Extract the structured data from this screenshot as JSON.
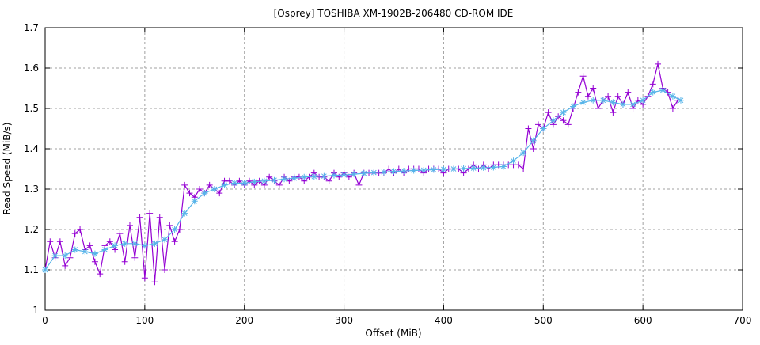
{
  "chart_data": {
    "type": "line",
    "title": "[Osprey] TOSHIBA XM-1902B-206480 CD-ROM IDE",
    "xlabel": "Offset (MiB)",
    "ylabel": "Read Speed (MiB/s)",
    "xlim": [
      0,
      700
    ],
    "ylim": [
      1,
      1.7
    ],
    "xticks": [
      "0",
      "100",
      "200",
      "300",
      "400",
      "500",
      "600",
      "700"
    ],
    "yticks": [
      "1",
      "1.1",
      "1.2",
      "1.3",
      "1.4",
      "1.5",
      "1.6",
      "1.7"
    ],
    "grid": true,
    "series": [
      {
        "color": "#9400d3",
        "marker": "plus",
        "x": [
          0,
          5,
          10,
          15,
          20,
          25,
          30,
          35,
          40,
          45,
          50,
          55,
          60,
          65,
          70,
          75,
          80,
          85,
          90,
          95,
          100,
          105,
          110,
          115,
          120,
          125,
          130,
          135,
          140,
          145,
          150,
          155,
          160,
          165,
          170,
          175,
          180,
          185,
          190,
          195,
          200,
          205,
          210,
          215,
          220,
          225,
          230,
          235,
          240,
          245,
          250,
          255,
          260,
          265,
          270,
          275,
          280,
          285,
          290,
          295,
          300,
          305,
          310,
          315,
          320,
          325,
          330,
          335,
          340,
          345,
          350,
          355,
          360,
          365,
          370,
          375,
          380,
          385,
          390,
          395,
          400,
          405,
          410,
          415,
          420,
          425,
          430,
          435,
          440,
          445,
          450,
          455,
          460,
          465,
          470,
          475,
          480,
          485,
          490,
          495,
          500,
          505,
          510,
          515,
          520,
          525,
          530,
          535,
          540,
          545,
          550,
          555,
          560,
          565,
          570,
          575,
          580,
          585,
          590,
          595,
          600,
          605,
          610,
          615,
          620,
          625,
          630,
          635
        ],
        "y": [
          1.1,
          1.17,
          1.13,
          1.17,
          1.11,
          1.13,
          1.19,
          1.2,
          1.15,
          1.16,
          1.12,
          1.09,
          1.16,
          1.17,
          1.15,
          1.19,
          1.12,
          1.21,
          1.13,
          1.23,
          1.08,
          1.24,
          1.07,
          1.23,
          1.1,
          1.21,
          1.17,
          1.2,
          1.31,
          1.29,
          1.28,
          1.3,
          1.29,
          1.31,
          1.3,
          1.29,
          1.32,
          1.32,
          1.31,
          1.32,
          1.31,
          1.32,
          1.31,
          1.32,
          1.31,
          1.33,
          1.32,
          1.31,
          1.33,
          1.32,
          1.33,
          1.33,
          1.32,
          1.33,
          1.34,
          1.33,
          1.33,
          1.32,
          1.34,
          1.33,
          1.34,
          1.33,
          1.34,
          1.31,
          1.34,
          1.34,
          1.34,
          1.34,
          1.34,
          1.35,
          1.34,
          1.35,
          1.34,
          1.35,
          1.35,
          1.35,
          1.34,
          1.35,
          1.35,
          1.35,
          1.34,
          1.35,
          1.35,
          1.35,
          1.34,
          1.35,
          1.36,
          1.35,
          1.36,
          1.35,
          1.36,
          1.36,
          1.36,
          1.36,
          1.36,
          1.36,
          1.35,
          1.45,
          1.4,
          1.46,
          1.45,
          1.49,
          1.46,
          1.48,
          1.47,
          1.46,
          1.5,
          1.54,
          1.58,
          1.53,
          1.55,
          1.5,
          1.52,
          1.53,
          1.49,
          1.53,
          1.51,
          1.54,
          1.5,
          1.52,
          1.51,
          1.53,
          1.56,
          1.61,
          1.55,
          1.54,
          1.5,
          1.52
        ]
      },
      {
        "color": "#56b4e9",
        "marker": "star",
        "x": [
          0,
          10,
          20,
          30,
          40,
          50,
          60,
          70,
          80,
          90,
          100,
          110,
          120,
          130,
          140,
          150,
          160,
          170,
          180,
          190,
          200,
          210,
          220,
          230,
          240,
          250,
          260,
          270,
          280,
          290,
          300,
          310,
          320,
          330,
          340,
          350,
          360,
          370,
          380,
          390,
          400,
          410,
          420,
          430,
          440,
          450,
          460,
          470,
          480,
          490,
          500,
          510,
          520,
          530,
          540,
          550,
          560,
          570,
          580,
          590,
          600,
          610,
          620,
          630,
          638
        ],
        "y": [
          1.1,
          1.135,
          1.135,
          1.15,
          1.145,
          1.14,
          1.15,
          1.16,
          1.165,
          1.165,
          1.16,
          1.165,
          1.175,
          1.2,
          1.24,
          1.27,
          1.29,
          1.3,
          1.31,
          1.315,
          1.315,
          1.318,
          1.32,
          1.322,
          1.325,
          1.327,
          1.33,
          1.331,
          1.332,
          1.334,
          1.335,
          1.337,
          1.339,
          1.341,
          1.342,
          1.344,
          1.345,
          1.346,
          1.347,
          1.348,
          1.349,
          1.35,
          1.351,
          1.352,
          1.353,
          1.354,
          1.356,
          1.37,
          1.39,
          1.42,
          1.45,
          1.47,
          1.49,
          1.505,
          1.515,
          1.52,
          1.52,
          1.515,
          1.51,
          1.51,
          1.52,
          1.54,
          1.545,
          1.53,
          1.52
        ]
      }
    ]
  }
}
